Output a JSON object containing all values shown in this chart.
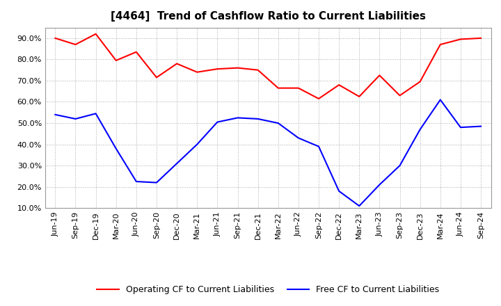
{
  "title": "[4464]  Trend of Cashflow Ratio to Current Liabilities",
  "x_labels": [
    "Jun-19",
    "Sep-19",
    "Dec-19",
    "Mar-20",
    "Jun-20",
    "Sep-20",
    "Dec-20",
    "Mar-21",
    "Jun-21",
    "Sep-21",
    "Dec-21",
    "Mar-22",
    "Jun-22",
    "Sep-22",
    "Dec-22",
    "Mar-23",
    "Jun-23",
    "Sep-23",
    "Dec-23",
    "Mar-24",
    "Jun-24",
    "Sep-24"
  ],
  "operating_cf": [
    90.0,
    87.0,
    92.0,
    79.5,
    83.5,
    71.5,
    78.0,
    74.0,
    75.5,
    76.0,
    75.0,
    66.5,
    66.5,
    61.5,
    68.0,
    62.5,
    72.5,
    63.0,
    69.5,
    87.0,
    89.5,
    90.0
  ],
  "free_cf": [
    54.0,
    52.0,
    54.5,
    38.0,
    22.5,
    22.0,
    31.0,
    40.0,
    50.5,
    52.5,
    52.0,
    50.0,
    43.0,
    39.0,
    18.0,
    11.0,
    21.0,
    30.0,
    47.0,
    61.0,
    48.0,
    48.5
  ],
  "operating_color": "#FF0000",
  "free_color": "#0000FF",
  "background_color": "#FFFFFF",
  "grid_color": "#AAAAAA",
  "ylim": [
    10.0,
    95.0
  ],
  "yticks": [
    10.0,
    20.0,
    30.0,
    40.0,
    50.0,
    60.0,
    70.0,
    80.0,
    90.0
  ],
  "legend_operating": "Operating CF to Current Liabilities",
  "legend_free": "Free CF to Current Liabilities",
  "title_fontsize": 11,
  "axis_fontsize": 8,
  "legend_fontsize": 9,
  "line_width": 1.5
}
